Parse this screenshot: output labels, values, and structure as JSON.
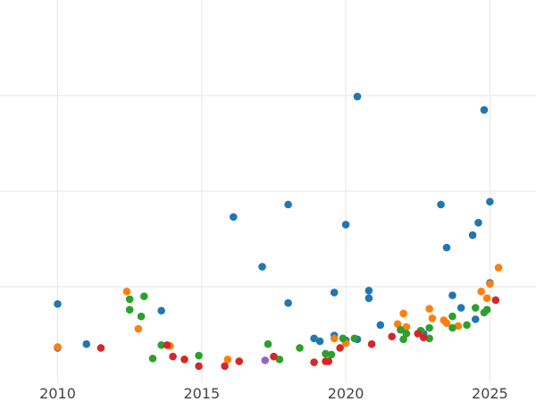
{
  "chart_data": {
    "type": "scatter",
    "title": "",
    "xlabel": "",
    "ylabel": "",
    "xlim": [
      2008.0,
      2026.6
    ],
    "ylim": [
      0,
      4
    ],
    "grid": true,
    "legend": "none",
    "x_ticks": [
      2010,
      2015,
      2020,
      2025
    ],
    "x_tick_labels": [
      "2010",
      "2015",
      "2020",
      "2025"
    ],
    "y_ticks": [
      1,
      2,
      3
    ],
    "colors": {
      "blue": "#1f77b4",
      "orange": "#ff7f0e",
      "green": "#2ca02c",
      "red": "#d62728",
      "purple": "#9467bd"
    },
    "series": [
      {
        "color": "#1f77b4",
        "points": [
          [
            2010.0,
            0.82
          ],
          [
            2010.0,
            0.36
          ],
          [
            2011.0,
            0.4
          ],
          [
            2013.6,
            0.75
          ],
          [
            2016.1,
            1.73
          ],
          [
            2017.1,
            1.21
          ],
          [
            2018.0,
            0.83
          ],
          [
            2018.0,
            1.86
          ],
          [
            2018.9,
            0.46
          ],
          [
            2019.1,
            0.43
          ],
          [
            2019.6,
            0.49
          ],
          [
            2019.6,
            0.94
          ],
          [
            2020.0,
            1.65
          ],
          [
            2020.0,
            0.44
          ],
          [
            2020.4,
            2.99
          ],
          [
            2020.4,
            0.45
          ],
          [
            2020.8,
            0.88
          ],
          [
            2020.8,
            0.96
          ],
          [
            2021.2,
            0.6
          ],
          [
            2022.7,
            0.51
          ],
          [
            2023.3,
            1.86
          ],
          [
            2023.5,
            1.41
          ],
          [
            2023.7,
            0.91
          ],
          [
            2024.0,
            0.78
          ],
          [
            2024.4,
            1.54
          ],
          [
            2024.5,
            0.66
          ],
          [
            2024.6,
            1.67
          ],
          [
            2024.8,
            2.85
          ],
          [
            2025.0,
            1.89
          ],
          [
            2025.0,
            1.04
          ]
        ]
      },
      {
        "color": "#ff7f0e",
        "points": [
          [
            2010.0,
            0.37
          ],
          [
            2012.4,
            0.95
          ],
          [
            2012.8,
            0.56
          ],
          [
            2013.9,
            0.38
          ],
          [
            2015.9,
            0.24
          ],
          [
            2019.6,
            0.46
          ],
          [
            2020.0,
            0.41
          ],
          [
            2021.8,
            0.61
          ],
          [
            2022.0,
            0.72
          ],
          [
            2022.1,
            0.58
          ],
          [
            2022.9,
            0.77
          ],
          [
            2023.0,
            0.67
          ],
          [
            2023.4,
            0.65
          ],
          [
            2023.5,
            0.62
          ],
          [
            2023.9,
            0.59
          ],
          [
            2024.7,
            0.95
          ],
          [
            2024.9,
            0.88
          ],
          [
            2025.0,
            1.03
          ],
          [
            2025.3,
            1.2
          ]
        ]
      },
      {
        "color": "#2ca02c",
        "points": [
          [
            2012.5,
            0.87
          ],
          [
            2012.5,
            0.76
          ],
          [
            2012.9,
            0.69
          ],
          [
            2013.0,
            0.9
          ],
          [
            2013.3,
            0.25
          ],
          [
            2013.6,
            0.39
          ],
          [
            2014.9,
            0.28
          ],
          [
            2017.3,
            0.4
          ],
          [
            2017.7,
            0.24
          ],
          [
            2018.4,
            0.36
          ],
          [
            2019.3,
            0.3
          ],
          [
            2019.5,
            0.29
          ],
          [
            2019.9,
            0.46
          ],
          [
            2020.3,
            0.46
          ],
          [
            2021.9,
            0.55
          ],
          [
            2022.0,
            0.45
          ],
          [
            2022.1,
            0.51
          ],
          [
            2022.6,
            0.54
          ],
          [
            2022.9,
            0.46
          ],
          [
            2022.9,
            0.57
          ],
          [
            2023.7,
            0.57
          ],
          [
            2023.7,
            0.69
          ],
          [
            2024.2,
            0.6
          ],
          [
            2024.5,
            0.78
          ],
          [
            2024.8,
            0.73
          ],
          [
            2024.9,
            0.76
          ]
        ]
      },
      {
        "color": "#d62728",
        "points": [
          [
            2011.5,
            0.36
          ],
          [
            2013.8,
            0.39
          ],
          [
            2014.0,
            0.27
          ],
          [
            2014.4,
            0.24
          ],
          [
            2014.9,
            0.17
          ],
          [
            2015.8,
            0.17
          ],
          [
            2016.3,
            0.22
          ],
          [
            2017.5,
            0.27
          ],
          [
            2018.9,
            0.21
          ],
          [
            2019.3,
            0.22
          ],
          [
            2019.4,
            0.22
          ],
          [
            2019.8,
            0.36
          ],
          [
            2020.9,
            0.4
          ],
          [
            2021.6,
            0.48
          ],
          [
            2022.5,
            0.51
          ],
          [
            2022.7,
            0.47
          ],
          [
            2025.2,
            0.86
          ]
        ]
      },
      {
        "color": "#9467bd",
        "points": [
          [
            2017.2,
            0.23
          ]
        ]
      }
    ]
  }
}
